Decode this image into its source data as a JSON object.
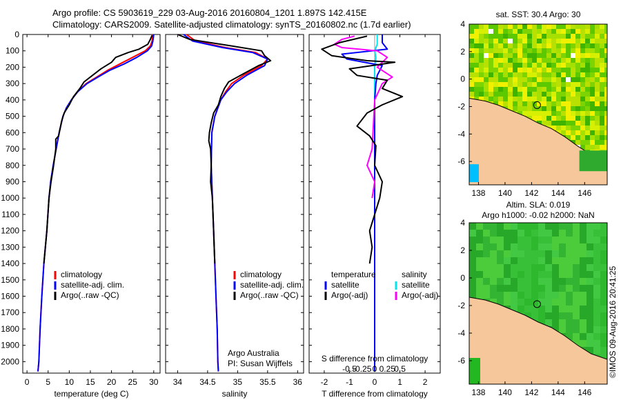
{
  "header": {
    "line1": "Argo profile: CS 5903619_229 03-Aug-2016 20160804_1201 1.897S 142.415E",
    "line2": "Climatology: CARS2009. Satellite-adjusted climatology: synTS_20160802.nc (1.7d earlier)"
  },
  "depth_axis": {
    "ticks": [
      0,
      100,
      200,
      300,
      400,
      500,
      600,
      700,
      800,
      900,
      1000,
      1100,
      1200,
      1300,
      1400,
      1500,
      1600,
      1700,
      1800,
      1900,
      2000
    ],
    "ylim": [
      0,
      2070
    ]
  },
  "colors": {
    "climatology": "#ff0000",
    "satellite": "#0000ff",
    "argo": "#000000",
    "sat_salinity": "#00e5ee",
    "argo_salinity": "#ff00ff",
    "land": "#f5c79a",
    "water_green": "#22b822"
  },
  "chart_data": [
    {
      "id": "temperature",
      "type": "line",
      "xlabel": "temperature (deg C)",
      "xlim": [
        -1,
        31.5
      ],
      "xticks": [
        0,
        5,
        10,
        15,
        20,
        25,
        30
      ],
      "legend": [
        "climatology",
        "satellite-adj. clim.",
        "Argo(..raw -QC)"
      ],
      "series": [
        {
          "name": "climatology",
          "color": "#ff0000",
          "points": [
            [
              29.8,
              0
            ],
            [
              29.6,
              40
            ],
            [
              29.2,
              70
            ],
            [
              28,
              100
            ],
            [
              25,
              140
            ],
            [
              22,
              180
            ],
            [
              19,
              220
            ],
            [
              16.5,
              260
            ],
            [
              14,
              300
            ],
            [
              12,
              350
            ],
            [
              10.5,
              400
            ],
            [
              9.3,
              450
            ],
            [
              8.5,
              500
            ],
            [
              7.6,
              600
            ],
            [
              6.9,
              700
            ],
            [
              6.2,
              800
            ],
            [
              5.6,
              900
            ],
            [
              5.2,
              1000
            ],
            [
              4.7,
              1200
            ],
            [
              4.0,
              1400
            ],
            [
              3.5,
              1600
            ],
            [
              3.1,
              1800
            ],
            [
              2.8,
              2000
            ],
            [
              2.6,
              2060
            ]
          ]
        },
        {
          "name": "satellite-adj. clim.",
          "color": "#0000ff",
          "points": [
            [
              30,
              0
            ],
            [
              29.8,
              40
            ],
            [
              29.5,
              70
            ],
            [
              28.5,
              100
            ],
            [
              26,
              140
            ],
            [
              23,
              180
            ],
            [
              19.5,
              220
            ],
            [
              16.8,
              260
            ],
            [
              14.2,
              300
            ],
            [
              12,
              350
            ],
            [
              10.5,
              400
            ],
            [
              9.3,
              450
            ],
            [
              8.5,
              500
            ],
            [
              7.6,
              600
            ],
            [
              6.9,
              700
            ],
            [
              6.2,
              800
            ],
            [
              5.6,
              900
            ],
            [
              5.2,
              1000
            ],
            [
              4.7,
              1200
            ],
            [
              4.0,
              1400
            ],
            [
              3.5,
              1600
            ],
            [
              3.1,
              1800
            ],
            [
              2.8,
              2000
            ],
            [
              2.6,
              2060
            ]
          ]
        },
        {
          "name": "Argo(..raw -QC)",
          "color": "#000000",
          "points": [
            [
              29.6,
              5
            ],
            [
              29.2,
              30
            ],
            [
              28.6,
              60
            ],
            [
              26.5,
              90
            ],
            [
              24,
              110
            ],
            [
              21,
              140
            ],
            [
              20,
              170
            ],
            [
              17.5,
              210
            ],
            [
              15.5,
              250
            ],
            [
              13.5,
              290
            ],
            [
              12.5,
              330
            ],
            [
              11,
              380
            ],
            [
              10,
              430
            ],
            [
              8.8,
              480
            ],
            [
              8.2,
              530
            ],
            [
              7.5,
              620
            ],
            [
              6.8,
              640
            ],
            [
              6.8,
              700
            ],
            [
              6.3,
              800
            ],
            [
              5.7,
              900
            ],
            [
              5.2,
              1000
            ],
            [
              4.7,
              1200
            ],
            [
              4.0,
              1400
            ]
          ]
        }
      ]
    },
    {
      "id": "salinity",
      "type": "line",
      "xlabel": "salinity",
      "xlim": [
        33.8,
        36.1
      ],
      "xticks": [
        34,
        34.5,
        35,
        35.5,
        36
      ],
      "legend": [
        "climatology",
        "satellite-adj. clim.",
        "Argo(..raw -QC)"
      ],
      "annotations": [
        "Argo Australia",
        "PI: Susan Wijffels"
      ],
      "series": [
        {
          "name": "climatology",
          "color": "#ff0000",
          "points": [
            [
              34.15,
              0
            ],
            [
              34.3,
              40
            ],
            [
              34.8,
              80
            ],
            [
              35.3,
              110
            ],
            [
              35.5,
              150
            ],
            [
              35.4,
              190
            ],
            [
              35.1,
              250
            ],
            [
              34.9,
              300
            ],
            [
              34.8,
              350
            ],
            [
              34.72,
              400
            ],
            [
              34.62,
              500
            ],
            [
              34.57,
              600
            ],
            [
              34.56,
              800
            ],
            [
              34.58,
              1000
            ],
            [
              34.6,
              1200
            ],
            [
              34.62,
              1400
            ],
            [
              34.64,
              1600
            ],
            [
              34.66,
              1800
            ],
            [
              34.67,
              2000
            ],
            [
              34.68,
              2060
            ]
          ]
        },
        {
          "name": "satellite-adj. clim.",
          "color": "#0000ff",
          "points": [
            [
              34.1,
              0
            ],
            [
              34.25,
              40
            ],
            [
              34.75,
              80
            ],
            [
              35.25,
              110
            ],
            [
              35.5,
              150
            ],
            [
              35.45,
              190
            ],
            [
              35.15,
              250
            ],
            [
              34.95,
              300
            ],
            [
              34.82,
              350
            ],
            [
              34.72,
              400
            ],
            [
              34.62,
              500
            ],
            [
              34.57,
              600
            ],
            [
              34.56,
              800
            ],
            [
              34.58,
              1000
            ],
            [
              34.6,
              1200
            ],
            [
              34.62,
              1400
            ],
            [
              34.64,
              1600
            ],
            [
              34.66,
              1800
            ],
            [
              34.67,
              2000
            ],
            [
              34.68,
              2060
            ]
          ]
        },
        {
          "name": "Argo(..raw -QC)",
          "color": "#000000",
          "points": [
            [
              34.0,
              0
            ],
            [
              34.2,
              30
            ],
            [
              34.9,
              70
            ],
            [
              35.4,
              100
            ],
            [
              35.45,
              130
            ],
            [
              35.55,
              160
            ],
            [
              35.35,
              190
            ],
            [
              35.1,
              240
            ],
            [
              34.85,
              290
            ],
            [
              34.78,
              330
            ],
            [
              34.72,
              380
            ],
            [
              34.68,
              430
            ],
            [
              34.6,
              480
            ],
            [
              34.56,
              540
            ],
            [
              34.53,
              600
            ],
            [
              34.52,
              650
            ],
            [
              34.55,
              700
            ],
            [
              34.56,
              800
            ],
            [
              34.55,
              900
            ],
            [
              34.58,
              1000
            ],
            [
              34.6,
              1200
            ],
            [
              34.62,
              1400
            ]
          ]
        }
      ]
    },
    {
      "id": "differences",
      "type": "line",
      "xlabel": "T difference from climatology",
      "xlabel_top": "S difference from climatology",
      "xlim": [
        -2.6,
        2.6
      ],
      "xticks": [
        -2,
        -1,
        0,
        1,
        2
      ],
      "xtick_labels": [
        "-2",
        "-1",
        "0",
        "1",
        "2"
      ],
      "xticks_top": [
        -1,
        -0.5,
        0,
        0.5,
        1
      ],
      "xtick_top_labels": [
        "-0.5",
        "-0.25",
        "0",
        "0.25",
        "0.5"
      ],
      "legend_temperature": {
        "title": "temperature",
        "items": [
          "satellite",
          "Argo(-adj)"
        ]
      },
      "legend_salinity": {
        "title": "salinity",
        "items": [
          "satellite",
          "Argo(-adj)"
        ]
      },
      "series": [
        {
          "name": "T satellite",
          "color": "#0000ff",
          "points": [
            [
              0.3,
              0
            ],
            [
              0.3,
              50
            ],
            [
              0.5,
              90
            ],
            [
              -1.3,
              120
            ],
            [
              -1.1,
              150
            ],
            [
              0.3,
              190
            ],
            [
              0.1,
              250
            ],
            [
              0.05,
              300
            ],
            [
              0,
              400
            ],
            [
              0,
              2060
            ]
          ]
        },
        {
          "name": "T Argo(-adj)",
          "color": "#000000",
          "points": [
            [
              -0.3,
              10
            ],
            [
              -1.4,
              50
            ],
            [
              -2.1,
              90
            ],
            [
              -1.7,
              130
            ],
            [
              -0.3,
              160
            ],
            [
              0.8,
              170
            ],
            [
              -1.0,
              210
            ],
            [
              -0.7,
              250
            ],
            [
              0.5,
              280
            ],
            [
              0.3,
              330
            ],
            [
              1.1,
              380
            ],
            [
              0.3,
              430
            ],
            [
              -0.3,
              480
            ],
            [
              -0.7,
              560
            ],
            [
              -0.2,
              620
            ],
            [
              0.05,
              680
            ],
            [
              0,
              800
            ],
            [
              0.3,
              900
            ],
            [
              0.2,
              1000
            ],
            [
              0,
              1100
            ],
            [
              -0.2,
              1200
            ],
            [
              -0.1,
              1300
            ],
            [
              -0.2,
              1400
            ]
          ]
        },
        {
          "name": "S satellite",
          "color": "#00e5ee",
          "points": [
            [
              0.1,
              0
            ],
            [
              0.1,
              60
            ],
            [
              0,
              100
            ],
            [
              0.05,
              140
            ],
            [
              0,
              200
            ],
            [
              0,
              400
            ],
            [
              0,
              2060
            ]
          ]
        },
        {
          "name": "S Argo(-adj)",
          "color": "#ff00ff",
          "points": [
            [
              -0.8,
              10
            ],
            [
              -1.3,
              30
            ],
            [
              -1.6,
              60
            ],
            [
              -1.3,
              80
            ],
            [
              0.1,
              100
            ],
            [
              0.5,
              140
            ],
            [
              0.3,
              170
            ],
            [
              0.1,
              200
            ],
            [
              0.7,
              260
            ],
            [
              0.3,
              300
            ],
            [
              0,
              400
            ],
            [
              -0.1,
              700
            ],
            [
              -0.3,
              800
            ],
            [
              0,
              900
            ],
            [
              -0.1,
              1000
            ]
          ]
        }
      ]
    },
    {
      "id": "map_sst",
      "type": "heatmap",
      "title": "sat. SST: 30.4 Argo: 30",
      "xticks": [
        138,
        140,
        142,
        144,
        146
      ],
      "yticks": [
        4,
        2,
        0,
        -2,
        -4,
        -6
      ],
      "xlim": [
        137.3,
        147.7
      ],
      "ylim": [
        -7.7,
        4
      ],
      "float_position": [
        142.415,
        -1.897
      ]
    },
    {
      "id": "map_sla",
      "type": "heatmap",
      "title": "Altim. SLA: 0.019",
      "subtitle": "Argo h1000: -0.02 h2000: NaN",
      "xticks": [
        138,
        140,
        142,
        144,
        146
      ],
      "yticks": [
        4,
        2,
        0,
        -2,
        -4,
        -6
      ],
      "xlim": [
        137.3,
        147.7
      ],
      "ylim": [
        -7.7,
        4
      ],
      "float_position": [
        142.415,
        -1.897
      ]
    }
  ],
  "footer": {
    "stamp": "©IMOS 09-Aug-2016 20:41:25"
  }
}
